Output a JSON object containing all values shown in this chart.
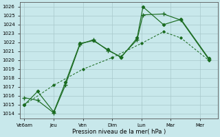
{
  "background_color": "#c8e8eb",
  "grid_color": "#a8c8cb",
  "line_color": "#1a6b20",
  "xlabel": "Pression niveau de la mer( hPa )",
  "xlabels": [
    "Ve6am",
    "Jeu",
    "Ven",
    "Dim",
    "Lun",
    "Mar",
    "Mer"
  ],
  "ylim": [
    1013.5,
    1026.5
  ],
  "yticks": [
    1014,
    1015,
    1016,
    1017,
    1018,
    1019,
    1020,
    1021,
    1022,
    1023,
    1024,
    1025,
    1026
  ],
  "xtick_pos": [
    0,
    1,
    2,
    3,
    4,
    5,
    6
  ],
  "xlim": [
    -0.15,
    6.6
  ],
  "line1_x": [
    0.0,
    0.45,
    1.0,
    1.4,
    1.9,
    2.35,
    2.85,
    3.3,
    3.85,
    4.05,
    4.75,
    5.35,
    6.3
  ],
  "line1_y": [
    1015.8,
    1015.5,
    1014.1,
    1017.2,
    1021.8,
    1022.3,
    1021.1,
    1020.4,
    1022.3,
    1025.1,
    1025.2,
    1024.5,
    1020.1
  ],
  "line2_x": [
    0.0,
    0.45,
    1.0,
    1.4,
    1.9,
    2.35,
    2.85,
    3.3,
    3.85,
    4.05,
    4.75,
    5.35,
    6.3
  ],
  "line2_y": [
    1015.0,
    1016.5,
    1014.2,
    1017.5,
    1021.9,
    1022.2,
    1021.2,
    1020.3,
    1022.5,
    1026.0,
    1024.0,
    1024.6,
    1020.2
  ],
  "line3_x": [
    0.0,
    1.0,
    2.0,
    3.0,
    4.0,
    4.75,
    5.35,
    6.3
  ],
  "line3_y": [
    1015.0,
    1017.2,
    1019.0,
    1020.3,
    1021.9,
    1023.2,
    1022.5,
    1020.0
  ]
}
